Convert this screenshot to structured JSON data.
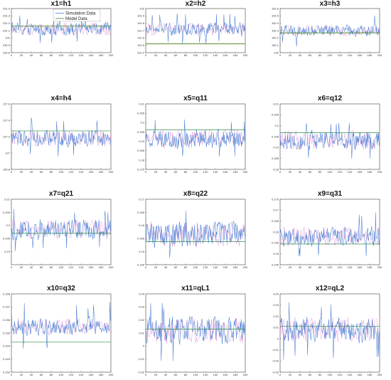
{
  "figure": {
    "legend": {
      "sim_label": "Simulation Data",
      "model_label": "Model Data"
    },
    "colors": {
      "sim": "#4a7fd4",
      "sim_alt": "#d33ab0",
      "model": "#2e8b4a",
      "model_alt": "#e0a020",
      "axes": "#444444"
    }
  },
  "chart_data": [
    {
      "type": "line",
      "title": "x1=h1",
      "xlim": [
        0,
        200
      ],
      "ylim": [
        230.8,
        231.4
      ],
      "xticks": [
        "0",
        "20",
        "40",
        "60",
        "80",
        "100",
        "120",
        "140",
        "160",
        "180",
        "200"
      ],
      "yticks": [
        "230.8",
        "230.9",
        "231",
        "231.1",
        "231.2",
        "231.3",
        "231.4"
      ],
      "series": [
        {
          "name": "Simulation Data",
          "mean": 231.12,
          "amp": 0.08,
          "min": 230.88,
          "max": 231.32
        },
        {
          "name": "Model Data",
          "values": [
            231.16,
            231.16
          ]
        }
      ]
    },
    {
      "type": "line",
      "title": "x2=h2",
      "xlim": [
        0,
        200
      ],
      "ylim": [
        191.4,
        192
      ],
      "xticks": [
        "0",
        "20",
        "40",
        "60",
        "80",
        "100",
        "120",
        "140",
        "160",
        "180",
        "200"
      ],
      "yticks": [
        "191.4",
        "191.5",
        "191.6",
        "191.7",
        "191.8",
        "191.9",
        "192"
      ],
      "series": [
        {
          "name": "Simulation Data",
          "mean": 191.72,
          "amp": 0.08,
          "min": 191.52,
          "max": 191.95
        },
        {
          "name": "Model Data",
          "values": [
            191.52,
            191.52
          ]
        }
      ]
    },
    {
      "type": "line",
      "title": "x3=h3",
      "xlim": [
        0,
        200
      ],
      "ylim": [
        152,
        152.6
      ],
      "xticks": [
        "0",
        "20",
        "40",
        "60",
        "80",
        "100",
        "120",
        "140",
        "160",
        "180",
        "200"
      ],
      "yticks": [
        "152",
        "152.1",
        "152.2",
        "152.3",
        "152.4",
        "152.5",
        "152.6"
      ],
      "series": [
        {
          "name": "Simulation Data",
          "mean": 152.3,
          "amp": 0.07,
          "min": 152.08,
          "max": 152.52
        },
        {
          "name": "Model Data",
          "values": [
            152.27,
            152.27
          ]
        }
      ]
    },
    {
      "type": "line",
      "title": "x4=h4",
      "xlim": [
        0,
        200
      ],
      "ylim": [
        126.8,
        127.6
      ],
      "xticks": [
        "0",
        "20",
        "40",
        "60",
        "80",
        "100",
        "120",
        "140",
        "160",
        "180",
        "200"
      ],
      "yticks": [
        "126.8",
        "127",
        "127.2",
        "127.4",
        "127.6"
      ],
      "series": [
        {
          "name": "Simulation Data",
          "mean": 127.18,
          "amp": 0.09,
          "min": 126.95,
          "max": 127.45
        },
        {
          "name": "Model Data",
          "values": [
            127.27,
            127.27
          ]
        }
      ]
    },
    {
      "type": "line",
      "title": "x5=q11",
      "xlim": [
        0,
        200
      ],
      "ylim": [
        0.175,
        0.21
      ],
      "xticks": [
        "0",
        "20",
        "40",
        "60",
        "80",
        "100",
        "120",
        "140",
        "160",
        "180",
        "200"
      ],
      "yticks": [
        "0.175",
        "0.18",
        "0.185",
        "0.19",
        "0.195",
        "0.2",
        "0.205",
        "0.21"
      ],
      "series": [
        {
          "name": "Simulation Data",
          "mean": 0.1915,
          "amp": 0.0045,
          "min": 0.182,
          "max": 0.203
        },
        {
          "name": "Model Data",
          "values": [
            0.1962,
            0.1962
          ]
        }
      ]
    },
    {
      "type": "line",
      "title": "x6=q12",
      "xlim": [
        0,
        200
      ],
      "ylim": [
        0.18,
        0.21
      ],
      "xticks": [
        "0",
        "20",
        "40",
        "60",
        "80",
        "100",
        "120",
        "140",
        "160",
        "180",
        "200"
      ],
      "yticks": [
        "0.18",
        "0.185",
        "0.19",
        "0.195",
        "0.2",
        "0.205",
        "0.21"
      ],
      "series": [
        {
          "name": "Simulation Data",
          "mean": 0.1935,
          "amp": 0.004,
          "min": 0.185,
          "max": 0.203
        },
        {
          "name": "Model Data",
          "values": [
            0.1968,
            0.1968
          ]
        }
      ]
    },
    {
      "type": "line",
      "title": "x7=q21",
      "xlim": [
        0,
        200
      ],
      "ylim": [
        0.185,
        0.21
      ],
      "xticks": [
        "0",
        "20",
        "40",
        "60",
        "80",
        "100",
        "120",
        "140",
        "160",
        "180",
        "200"
      ],
      "yticks": [
        "0.19",
        "0.195",
        "0.2",
        "0.205",
        "0.21"
      ],
      "series": [
        {
          "name": "Simulation Data",
          "mean": 0.1985,
          "amp": 0.0035,
          "min": 0.19,
          "max": 0.207
        },
        {
          "name": "Model Data",
          "values": [
            0.197,
            0.197
          ]
        }
      ]
    },
    {
      "type": "line",
      "title": "x8=q22",
      "xlim": [
        0,
        200
      ],
      "ylim": [
        0.145,
        0.17
      ],
      "xticks": [
        "0",
        "20",
        "40",
        "60",
        "80",
        "100",
        "120",
        "140",
        "160",
        "180",
        "200"
      ],
      "yticks": [
        "0.145",
        "0.15",
        "0.155",
        "0.16",
        "0.165",
        "0.17"
      ],
      "series": [
        {
          "name": "Simulation Data",
          "mean": 0.1565,
          "amp": 0.0045,
          "min": 0.147,
          "max": 0.167
        },
        {
          "name": "Model Data",
          "values": [
            0.1538,
            0.1538
          ]
        }
      ]
    },
    {
      "type": "line",
      "title": "x9=q31",
      "xlim": [
        0,
        200
      ],
      "ylim": [
        0.145,
        0.175
      ],
      "xticks": [
        "0",
        "20",
        "40",
        "60",
        "80",
        "100",
        "120",
        "140",
        "160",
        "180",
        "200"
      ],
      "yticks": [
        "0.145",
        "0.15",
        "0.155",
        "0.16",
        "0.165",
        "0.17",
        "0.175"
      ],
      "series": [
        {
          "name": "Simulation Data",
          "mean": 0.158,
          "amp": 0.004,
          "min": 0.149,
          "max": 0.169
        },
        {
          "name": "Model Data",
          "values": [
            0.1545,
            0.1545
          ]
        }
      ]
    },
    {
      "type": "line",
      "title": "x10=q32",
      "xlim": [
        0,
        200
      ],
      "ylim": [
        0.152,
        0.158
      ],
      "xticks": [
        "0",
        "20",
        "40",
        "60",
        "80",
        "100",
        "120",
        "140",
        "160",
        "180",
        "200"
      ],
      "yticks": [
        "0.152",
        "0.153",
        "0.154",
        "0.155",
        "0.156",
        "0.157",
        "0.158"
      ],
      "series": [
        {
          "name": "Simulation Data",
          "mean": 0.1555,
          "amp": 0.0006,
          "min": 0.1538,
          "max": 0.1575
        },
        {
          "name": "Model Data",
          "values": [
            0.1543,
            0.1543
          ]
        }
      ]
    },
    {
      "type": "line",
      "title": "x11=qL1",
      "xlim": [
        0,
        200
      ],
      "ylim": [
        -0.02,
        0.04
      ],
      "xticks": [
        "0",
        "20",
        "40",
        "60",
        "80",
        "100",
        "120",
        "140",
        "160",
        "180",
        "200"
      ],
      "yticks": [
        "-0.02",
        "-0.01",
        "0",
        "0.01",
        "0.02",
        "0.03",
        "0.04"
      ],
      "series": [
        {
          "name": "Simulation Data",
          "mean": 0.012,
          "amp": 0.009,
          "min": -0.012,
          "max": 0.036
        },
        {
          "name": "Model Data",
          "values": [
            0.013,
            0.013
          ]
        }
      ]
    },
    {
      "type": "line",
      "title": "x12=qL2",
      "xlim": [
        0,
        200
      ],
      "ylim": [
        -0.03,
        0.04
      ],
      "xticks": [
        "0",
        "20",
        "40",
        "60",
        "80",
        "100",
        "120",
        "140",
        "160",
        "180",
        "200"
      ],
      "yticks": [
        "-0.03",
        "-0.02",
        "-0.01",
        "0",
        "0.01",
        "0.02",
        "0.03",
        "0.04"
      ],
      "series": [
        {
          "name": "Simulation Data",
          "mean": 0.008,
          "amp": 0.01,
          "min": -0.02,
          "max": 0.035
        },
        {
          "name": "Model Data",
          "values": [
            0.011,
            0.011
          ]
        }
      ]
    }
  ]
}
